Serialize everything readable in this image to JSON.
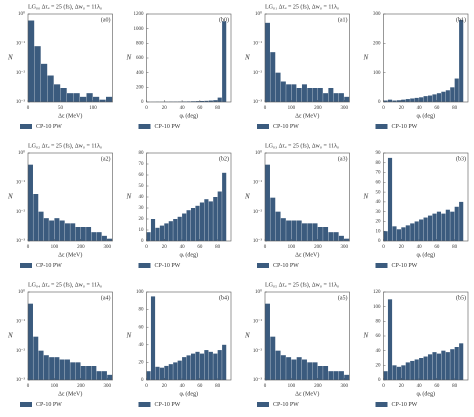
{
  "chart_data": [
    {
      "type": "histogram",
      "title": "LG₀₀  Δτₑ = 25 (fs), Δw₀ = 11λ₀",
      "panel": "(a0)",
      "xlabel": "Δε (MeV)",
      "ylabel": "N",
      "log_y": true,
      "bins": [
        0,
        10,
        20,
        30,
        40,
        50,
        60,
        70,
        80,
        90,
        100,
        110,
        120,
        130
      ],
      "series": [
        {
          "name": "CP-10 PW",
          "color": "#3b5b7e",
          "values": [
            0.6,
            0.08,
            0.02,
            0.008,
            0.004,
            0.003,
            0.002,
            0.002,
            0.0015,
            0.002,
            0.0015,
            0.0012,
            0.0015
          ]
        }
      ],
      "xlim": [
        0,
        130
      ],
      "xticks": [
        0,
        50,
        100
      ],
      "ylim": [
        0.001,
        1
      ],
      "yticks": [
        {
          "value": 0.001,
          "label": "10⁻³"
        },
        {
          "value": 0.01,
          "label": "10⁻²"
        },
        {
          "value": 0.1,
          "label": "10⁻¹"
        },
        {
          "value": 1,
          "label": "10⁰"
        }
      ]
    },
    {
      "type": "histogram",
      "panel": "(b0)",
      "xlabel": "φᵢ (deg)",
      "ylabel": "N",
      "log_y": false,
      "bins": [
        0,
        5,
        10,
        15,
        20,
        25,
        30,
        35,
        40,
        45,
        50,
        55,
        60,
        65,
        70,
        75,
        80,
        85,
        90
      ],
      "series": [
        {
          "name": "CP-10 PW",
          "color": "#3b5b7e",
          "values": [
            2,
            2,
            3,
            3,
            4,
            5,
            5,
            6,
            7,
            8,
            10,
            12,
            14,
            16,
            20,
            25,
            60,
            1100
          ]
        }
      ],
      "xlim": [
        0,
        95
      ],
      "xticks": [
        0,
        20,
        40,
        60,
        80
      ],
      "ylim": [
        0,
        1200
      ],
      "yticks": [
        0,
        200,
        400,
        600,
        800,
        1000,
        1200
      ]
    },
    {
      "type": "histogram",
      "title": "LG₀₁  Δτₑ = 25 (fs), Δw₀ = 11λ₀",
      "panel": "(a1)",
      "xlabel": "Δε (MeV)",
      "ylabel": "N",
      "log_y": true,
      "bins": [
        0,
        20,
        40,
        60,
        80,
        100,
        120,
        140,
        160,
        180,
        200,
        220,
        240,
        260,
        280,
        300,
        320
      ],
      "series": [
        {
          "name": "CP-10 PW",
          "color": "#3b5b7e",
          "values": [
            0.5,
            0.05,
            0.01,
            0.005,
            0.004,
            0.004,
            0.003,
            0.004,
            0.003,
            0.003,
            0.003,
            0.002,
            0.003,
            0.002,
            0.002,
            0.0015
          ]
        }
      ],
      "xlim": [
        0,
        320
      ],
      "xticks": [
        0,
        100,
        200,
        300
      ],
      "ylim": [
        0.001,
        1
      ],
      "yticks": [
        {
          "value": 0.001,
          "label": "10⁻³"
        },
        {
          "value": 0.01,
          "label": "10⁻²"
        },
        {
          "value": 0.1,
          "label": "10⁻¹"
        },
        {
          "value": 1,
          "label": "10⁰"
        }
      ]
    },
    {
      "type": "histogram",
      "panel": "(b1)",
      "xlabel": "φᵢ (deg)",
      "ylabel": "N",
      "log_y": false,
      "bins": [
        0,
        5,
        10,
        15,
        20,
        25,
        30,
        35,
        40,
        45,
        50,
        55,
        60,
        65,
        70,
        75,
        80,
        85,
        90
      ],
      "series": [
        {
          "name": "CP-10 PW",
          "color": "#3b5b7e",
          "values": [
            5,
            8,
            5,
            6,
            8,
            10,
            12,
            14,
            16,
            20,
            22,
            26,
            30,
            35,
            40,
            50,
            80,
            280
          ]
        }
      ],
      "xlim": [
        0,
        95
      ],
      "xticks": [
        0,
        20,
        40,
        60,
        80
      ],
      "ylim": [
        0,
        300
      ],
      "yticks": [
        0,
        100,
        200,
        300
      ]
    },
    {
      "type": "histogram",
      "title": "LG₀₂  Δτₑ = 25 (fs), Δw₀ = 11λ₀",
      "panel": "(a2)",
      "xlabel": "Δε (MeV)",
      "ylabel": "N",
      "log_y": true,
      "bins": [
        0,
        20,
        40,
        60,
        80,
        100,
        120,
        140,
        160,
        180,
        200,
        220,
        240,
        260,
        280,
        300,
        320
      ],
      "series": [
        {
          "name": "CP-10 PW",
          "color": "#3b5b7e",
          "values": [
            0.4,
            0.04,
            0.01,
            0.006,
            0.005,
            0.006,
            0.005,
            0.004,
            0.004,
            0.003,
            0.003,
            0.003,
            0.002,
            0.002,
            0.0015,
            0.0012
          ]
        }
      ],
      "xlim": [
        0,
        320
      ],
      "xticks": [
        0,
        100,
        200,
        300
      ],
      "ylim": [
        0.001,
        1
      ],
      "yticks": [
        {
          "value": 0.001,
          "label": "10⁻³"
        },
        {
          "value": 0.01,
          "label": "10⁻²"
        },
        {
          "value": 0.1,
          "label": "10⁻¹"
        },
        {
          "value": 1,
          "label": "10⁰"
        }
      ]
    },
    {
      "type": "histogram",
      "panel": "(b2)",
      "xlabel": "φᵢ (deg)",
      "ylabel": "N",
      "log_y": false,
      "bins": [
        0,
        5,
        10,
        15,
        20,
        25,
        30,
        35,
        40,
        45,
        50,
        55,
        60,
        65,
        70,
        75,
        80,
        85,
        90
      ],
      "series": [
        {
          "name": "CP-10 PW",
          "color": "#3b5b7e",
          "values": [
            8,
            20,
            12,
            14,
            16,
            18,
            20,
            22,
            25,
            28,
            30,
            32,
            35,
            38,
            36,
            40,
            45,
            62
          ]
        }
      ],
      "xlim": [
        0,
        95
      ],
      "xticks": [
        0,
        20,
        40,
        60,
        80
      ],
      "ylim": [
        0,
        80
      ],
      "yticks": [
        0,
        10,
        20,
        30,
        40,
        50,
        60,
        70,
        80
      ]
    },
    {
      "type": "histogram",
      "title": "LG₀₃  Δτₑ = 25 (fs), Δw₀ = 11λ₀",
      "panel": "(a3)",
      "xlabel": "Δε (MeV)",
      "ylabel": "N",
      "log_y": true,
      "bins": [
        0,
        20,
        40,
        60,
        80,
        100,
        120,
        140,
        160,
        180,
        200,
        220,
        240,
        260,
        280,
        300,
        320
      ],
      "series": [
        {
          "name": "CP-10 PW",
          "color": "#3b5b7e",
          "values": [
            0.4,
            0.03,
            0.01,
            0.006,
            0.005,
            0.005,
            0.005,
            0.004,
            0.004,
            0.004,
            0.003,
            0.003,
            0.002,
            0.002,
            0.0015,
            0.0012
          ]
        }
      ],
      "xlim": [
        0,
        320
      ],
      "xticks": [
        0,
        100,
        200,
        300
      ],
      "ylim": [
        0.001,
        1
      ],
      "yticks": [
        {
          "value": 0.001,
          "label": "10⁻³"
        },
        {
          "value": 0.01,
          "label": "10⁻²"
        },
        {
          "value": 0.1,
          "label": "10⁻¹"
        },
        {
          "value": 1,
          "label": "10⁰"
        }
      ]
    },
    {
      "type": "histogram",
      "panel": "(b3)",
      "xlabel": "φᵢ (deg)",
      "ylabel": "N",
      "log_y": false,
      "bins": [
        0,
        5,
        10,
        15,
        20,
        25,
        30,
        35,
        40,
        45,
        50,
        55,
        60,
        65,
        70,
        75,
        80,
        85,
        90
      ],
      "series": [
        {
          "name": "CP-10 PW",
          "color": "#3b5b7e",
          "values": [
            10,
            85,
            15,
            12,
            14,
            16,
            18,
            20,
            22,
            24,
            26,
            28,
            30,
            28,
            32,
            30,
            35,
            40
          ]
        }
      ],
      "xlim": [
        0,
        95
      ],
      "xticks": [
        0,
        20,
        40,
        60,
        80
      ],
      "ylim": [
        0,
        90
      ],
      "yticks": [
        0,
        10,
        20,
        30,
        40,
        50,
        60,
        70,
        80,
        90
      ]
    },
    {
      "type": "histogram",
      "title": "LG₀₄  Δτₑ = 25 (fs), Δw₀ = 11λ₀",
      "panel": "(a4)",
      "xlabel": "Δε (MeV)",
      "ylabel": "N",
      "log_y": true,
      "bins": [
        0,
        20,
        40,
        60,
        80,
        100,
        120,
        140,
        160,
        180,
        200,
        220,
        240,
        260,
        280,
        300,
        320
      ],
      "series": [
        {
          "name": "CP-10 PW",
          "color": "#3b5b7e",
          "values": [
            0.4,
            0.03,
            0.01,
            0.007,
            0.006,
            0.006,
            0.005,
            0.005,
            0.004,
            0.004,
            0.003,
            0.003,
            0.003,
            0.002,
            0.002,
            0.0015
          ]
        }
      ],
      "xlim": [
        0,
        320
      ],
      "xticks": [
        0,
        100,
        200,
        300
      ],
      "ylim": [
        0.001,
        1
      ],
      "yticks": [
        {
          "value": 0.001,
          "label": "10⁻³"
        },
        {
          "value": 0.01,
          "label": "10⁻²"
        },
        {
          "value": 0.1,
          "label": "10⁻¹"
        },
        {
          "value": 1,
          "label": "10⁰"
        }
      ]
    },
    {
      "type": "histogram",
      "panel": "(b4)",
      "xlabel": "φᵢ (deg)",
      "ylabel": "N",
      "log_y": false,
      "bins": [
        0,
        5,
        10,
        15,
        20,
        25,
        30,
        35,
        40,
        45,
        50,
        55,
        60,
        65,
        70,
        75,
        80,
        85,
        90
      ],
      "series": [
        {
          "name": "CP-10 PW",
          "color": "#3b5b7e",
          "values": [
            10,
            95,
            15,
            14,
            16,
            18,
            20,
            22,
            26,
            28,
            30,
            32,
            30,
            34,
            32,
            30,
            34,
            40
          ]
        }
      ],
      "xlim": [
        0,
        95
      ],
      "xticks": [
        0,
        20,
        40,
        60,
        80
      ],
      "ylim": [
        0,
        100
      ],
      "yticks": [
        0,
        20,
        40,
        60,
        80,
        100
      ]
    },
    {
      "type": "histogram",
      "title": "LG₀₅  Δτₑ = 25 (fs), Δw₀ = 11λ₀",
      "panel": "(a5)",
      "xlabel": "Δε (MeV)",
      "ylabel": "N",
      "log_y": true,
      "bins": [
        0,
        20,
        40,
        60,
        80,
        100,
        120,
        140,
        160,
        180,
        200,
        220,
        240,
        260,
        280,
        300,
        320
      ],
      "series": [
        {
          "name": "CP-10 PW",
          "color": "#3b5b7e",
          "values": [
            0.4,
            0.03,
            0.01,
            0.007,
            0.006,
            0.005,
            0.006,
            0.005,
            0.004,
            0.004,
            0.003,
            0.003,
            0.002,
            0.002,
            0.002,
            0.0015
          ]
        }
      ],
      "xlim": [
        0,
        320
      ],
      "xticks": [
        0,
        100,
        200,
        300
      ],
      "ylim": [
        0.001,
        1
      ],
      "yticks": [
        {
          "value": 0.001,
          "label": "10⁻³"
        },
        {
          "value": 0.01,
          "label": "10⁻²"
        },
        {
          "value": 0.1,
          "label": "10⁻¹"
        },
        {
          "value": 1,
          "label": "10⁰"
        }
      ]
    },
    {
      "type": "histogram",
      "panel": "(b5)",
      "xlabel": "φᵢ (deg)",
      "ylabel": "N",
      "log_y": false,
      "bins": [
        0,
        5,
        10,
        15,
        20,
        25,
        30,
        35,
        40,
        45,
        50,
        55,
        60,
        65,
        70,
        75,
        80,
        85,
        90
      ],
      "series": [
        {
          "name": "CP-10 PW",
          "color": "#3b5b7e",
          "values": [
            12,
            110,
            20,
            18,
            20,
            24,
            26,
            28,
            30,
            32,
            35,
            38,
            36,
            40,
            38,
            42,
            45,
            50
          ]
        }
      ],
      "xlim": [
        0,
        95
      ],
      "xticks": [
        0,
        20,
        40,
        60,
        80
      ],
      "ylim": [
        0,
        120
      ],
      "yticks": [
        0,
        20,
        40,
        60,
        80,
        100,
        120
      ]
    }
  ]
}
